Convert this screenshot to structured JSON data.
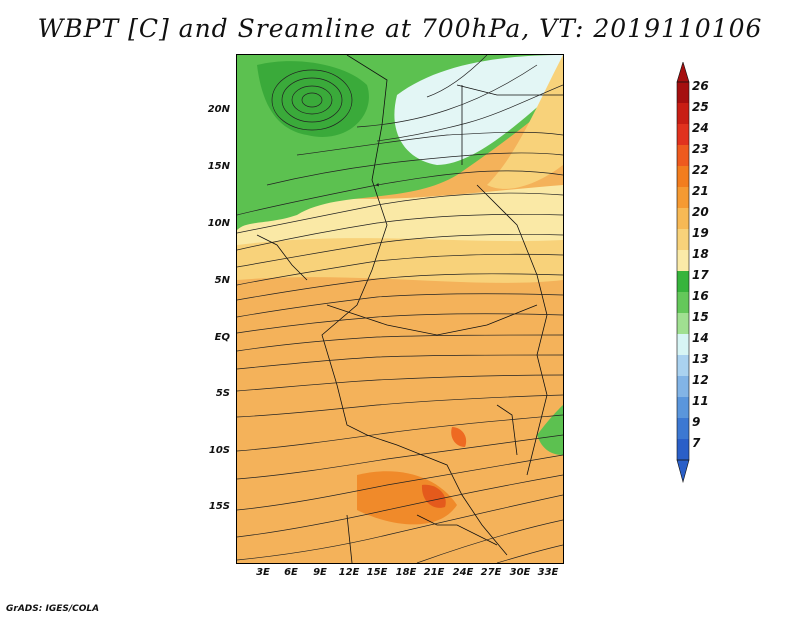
{
  "title": "WBPT [C] and Sreamline at 700hPa, VT: 2019110106",
  "credit": "GrADS: IGES/COLA",
  "map": {
    "lat_labels": [
      "20N",
      "15N",
      "10N",
      "5N",
      "EQ",
      "5S",
      "10S",
      "15S"
    ],
    "lon_labels": [
      "3E",
      "6E",
      "9E",
      "12E",
      "15E",
      "18E",
      "21E",
      "24E",
      "27E",
      "30E",
      "33E"
    ]
  },
  "colorbar": {
    "levels": [
      "26",
      "25",
      "24",
      "23",
      "22",
      "21",
      "20",
      "19",
      "18",
      "17",
      "16",
      "15",
      "14",
      "13",
      "12",
      "11",
      "9",
      "7"
    ],
    "colors": {
      "c26": "#a50f0f",
      "c25": "#c81e14",
      "c24": "#e1321e",
      "c23": "#ee5a1e",
      "c22": "#f27d1e",
      "c21": "#f59a32",
      "c20": "#f7b955",
      "c19": "#f8d27a",
      "c18": "#faeaa8",
      "c17": "#37b43c",
      "c16": "#64c85a",
      "c15": "#a0e091",
      "c14": "#d7f5f5",
      "c13": "#aad2f0",
      "c12": "#82b4e6",
      "c11": "#5a96dc",
      "c9": "#3c78d2",
      "c7": "#2a5fc8"
    }
  }
}
